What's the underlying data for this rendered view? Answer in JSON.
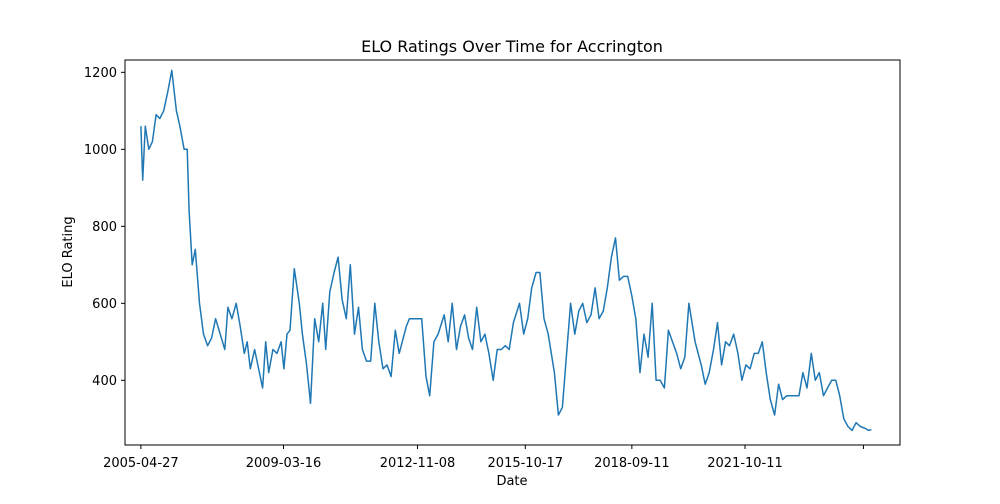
{
  "chart_data": {
    "type": "line",
    "title": "ELO Ratings Over Time for Accrington",
    "xlabel": "Date",
    "ylabel": "ELO Rating",
    "x_tick_labels": [
      "2005-04-27",
      "2009-03-16",
      "2012-11-08",
      "2015-10-17",
      "2018-09-11",
      "2021-10-11",
      ""
    ],
    "x_ticks": [
      "2005-04-27",
      "2009-03-16",
      "2012-11-08",
      "2015-10-17",
      "2018-09-11",
      "2021-10-11",
      "2025-01-01"
    ],
    "y_ticks": [
      400,
      600,
      800,
      1000,
      1200
    ],
    "xlim": [
      "2004-11-20",
      "2025-12-31"
    ],
    "ylim": [
      232,
      1232
    ],
    "grid": false,
    "line_color": "#1f77b4",
    "series": [
      {
        "x": [
          "2005-04-27",
          "2005-05-15",
          "2005-06-10",
          "2005-07-15",
          "2005-08-20",
          "2005-09-25",
          "2005-11-01",
          "2005-12-10",
          "2006-01-20",
          "2006-03-01",
          "2006-04-15",
          "2006-05-20",
          "2006-07-01",
          "2006-08-01",
          "2006-08-20",
          "2006-09-20",
          "2006-10-20",
          "2006-12-01",
          "2007-01-10",
          "2007-02-20",
          "2007-04-01",
          "2007-05-10",
          "2007-08-10",
          "2007-09-10",
          "2007-10-20",
          "2007-12-01",
          "2008-01-10",
          "2008-02-20",
          "2008-03-20",
          "2008-04-20",
          "2008-06-01",
          "2008-08-20",
          "2008-09-20",
          "2008-10-20",
          "2008-12-01",
          "2009-01-10",
          "2009-02-20",
          "2009-03-20",
          "2009-04-20",
          "2009-05-20",
          "2009-07-01",
          "2009-08-20",
          "2009-09-20",
          "2009-11-01",
          "2009-12-10",
          "2010-01-20",
          "2010-03-01",
          "2010-04-10",
          "2010-05-10",
          "2010-06-20",
          "2010-08-01",
          "2010-09-10",
          "2010-10-20",
          "2010-12-01",
          "2011-01-10",
          "2011-02-20",
          "2011-04-01",
          "2011-05-10",
          "2011-06-20",
          "2011-08-01",
          "2011-09-10",
          "2011-10-20",
          "2011-12-01",
          "2012-01-10",
          "2012-02-20",
          "2012-04-01",
          "2012-05-10",
          "2012-07-20",
          "2012-08-20",
          "2012-10-01",
          "2012-11-10",
          "2012-12-20",
          "2013-02-01",
          "2013-03-10",
          "2013-04-20",
          "2013-06-01",
          "2013-08-01",
          "2013-09-10",
          "2013-10-20",
          "2013-12-01",
          "2014-01-10",
          "2014-02-20",
          "2014-04-01",
          "2014-05-10",
          "2014-06-20",
          "2014-08-01",
          "2014-09-10",
          "2014-10-20",
          "2014-12-01",
          "2015-01-10",
          "2015-02-20",
          "2015-04-01",
          "2015-05-10",
          "2015-06-20",
          "2015-08-20",
          "2015-10-01",
          "2015-11-10",
          "2015-12-20",
          "2016-02-01",
          "2016-03-10",
          "2016-04-20",
          "2016-06-01",
          "2016-08-01",
          "2016-09-10",
          "2016-10-20",
          "2016-12-01",
          "2017-01-10",
          "2017-02-20",
          "2017-04-01",
          "2017-05-10",
          "2017-06-20",
          "2017-08-01",
          "2017-09-10",
          "2017-10-20",
          "2017-12-01",
          "2018-01-10",
          "2018-02-20",
          "2018-04-01",
          "2018-05-10",
          "2018-06-20",
          "2018-08-01",
          "2018-09-10",
          "2018-10-20",
          "2018-12-01",
          "2019-01-10",
          "2019-02-20",
          "2019-04-01",
          "2019-05-10",
          "2019-06-20",
          "2019-08-01",
          "2019-09-10",
          "2019-10-20",
          "2019-12-01",
          "2020-01-10",
          "2020-02-20",
          "2020-04-01",
          "2020-06-01",
          "2020-08-01",
          "2020-09-10",
          "2020-10-20",
          "2020-12-01",
          "2021-01-10",
          "2021-02-20",
          "2021-04-01",
          "2021-05-10",
          "2021-06-20",
          "2021-08-01",
          "2021-09-10",
          "2021-10-20",
          "2021-12-01",
          "2022-01-10",
          "2022-02-20",
          "2022-04-01",
          "2022-05-10",
          "2022-06-20",
          "2022-08-01",
          "2022-09-10",
          "2022-10-20",
          "2022-12-01",
          "2023-01-10",
          "2023-02-20",
          "2023-04-01",
          "2023-05-10",
          "2023-06-20",
          "2023-08-01",
          "2023-09-10",
          "2023-10-20",
          "2023-12-01",
          "2024-01-10",
          "2024-02-20",
          "2024-04-01",
          "2024-05-10",
          "2024-06-20",
          "2024-08-01",
          "2024-09-10",
          "2024-10-20",
          "2024-12-01",
          "2025-01-20",
          "2025-02-20",
          "2025-03-20"
        ],
        "y": [
          1060,
          920,
          1060,
          1000,
          1020,
          1090,
          1080,
          1100,
          1150,
          1205,
          1100,
          1060,
          1000,
          1000,
          840,
          700,
          740,
          600,
          520,
          490,
          510,
          560,
          480,
          590,
          560,
          600,
          540,
          470,
          500,
          430,
          480,
          380,
          500,
          420,
          480,
          470,
          500,
          430,
          520,
          530,
          690,
          600,
          520,
          440,
          340,
          560,
          500,
          600,
          480,
          630,
          680,
          720,
          610,
          560,
          700,
          520,
          590,
          480,
          450,
          450,
          600,
          500,
          430,
          440,
          410,
          530,
          470,
          540,
          560,
          560,
          560,
          560,
          410,
          360,
          500,
          520,
          570,
          500,
          600,
          480,
          540,
          570,
          510,
          480,
          590,
          500,
          520,
          470,
          400,
          480,
          480,
          490,
          480,
          550,
          600,
          520,
          560,
          640,
          680,
          680,
          560,
          520,
          420,
          310,
          330,
          470,
          600,
          520,
          580,
          600,
          550,
          570,
          640,
          560,
          580,
          640,
          720,
          770,
          660,
          670,
          670,
          620,
          560,
          420,
          520,
          460,
          600,
          400,
          400,
          380,
          530,
          500,
          470,
          430,
          460,
          600,
          500,
          440,
          390,
          420,
          480,
          550,
          440,
          500,
          490,
          520,
          470,
          400,
          440,
          430,
          470,
          470,
          500,
          420,
          350,
          310,
          390,
          350,
          360,
          360,
          360,
          360,
          420,
          380,
          470,
          400,
          420,
          360,
          380,
          400,
          400,
          360,
          300,
          280,
          270,
          290,
          280,
          275,
          270,
          272
        ]
      }
    ]
  }
}
